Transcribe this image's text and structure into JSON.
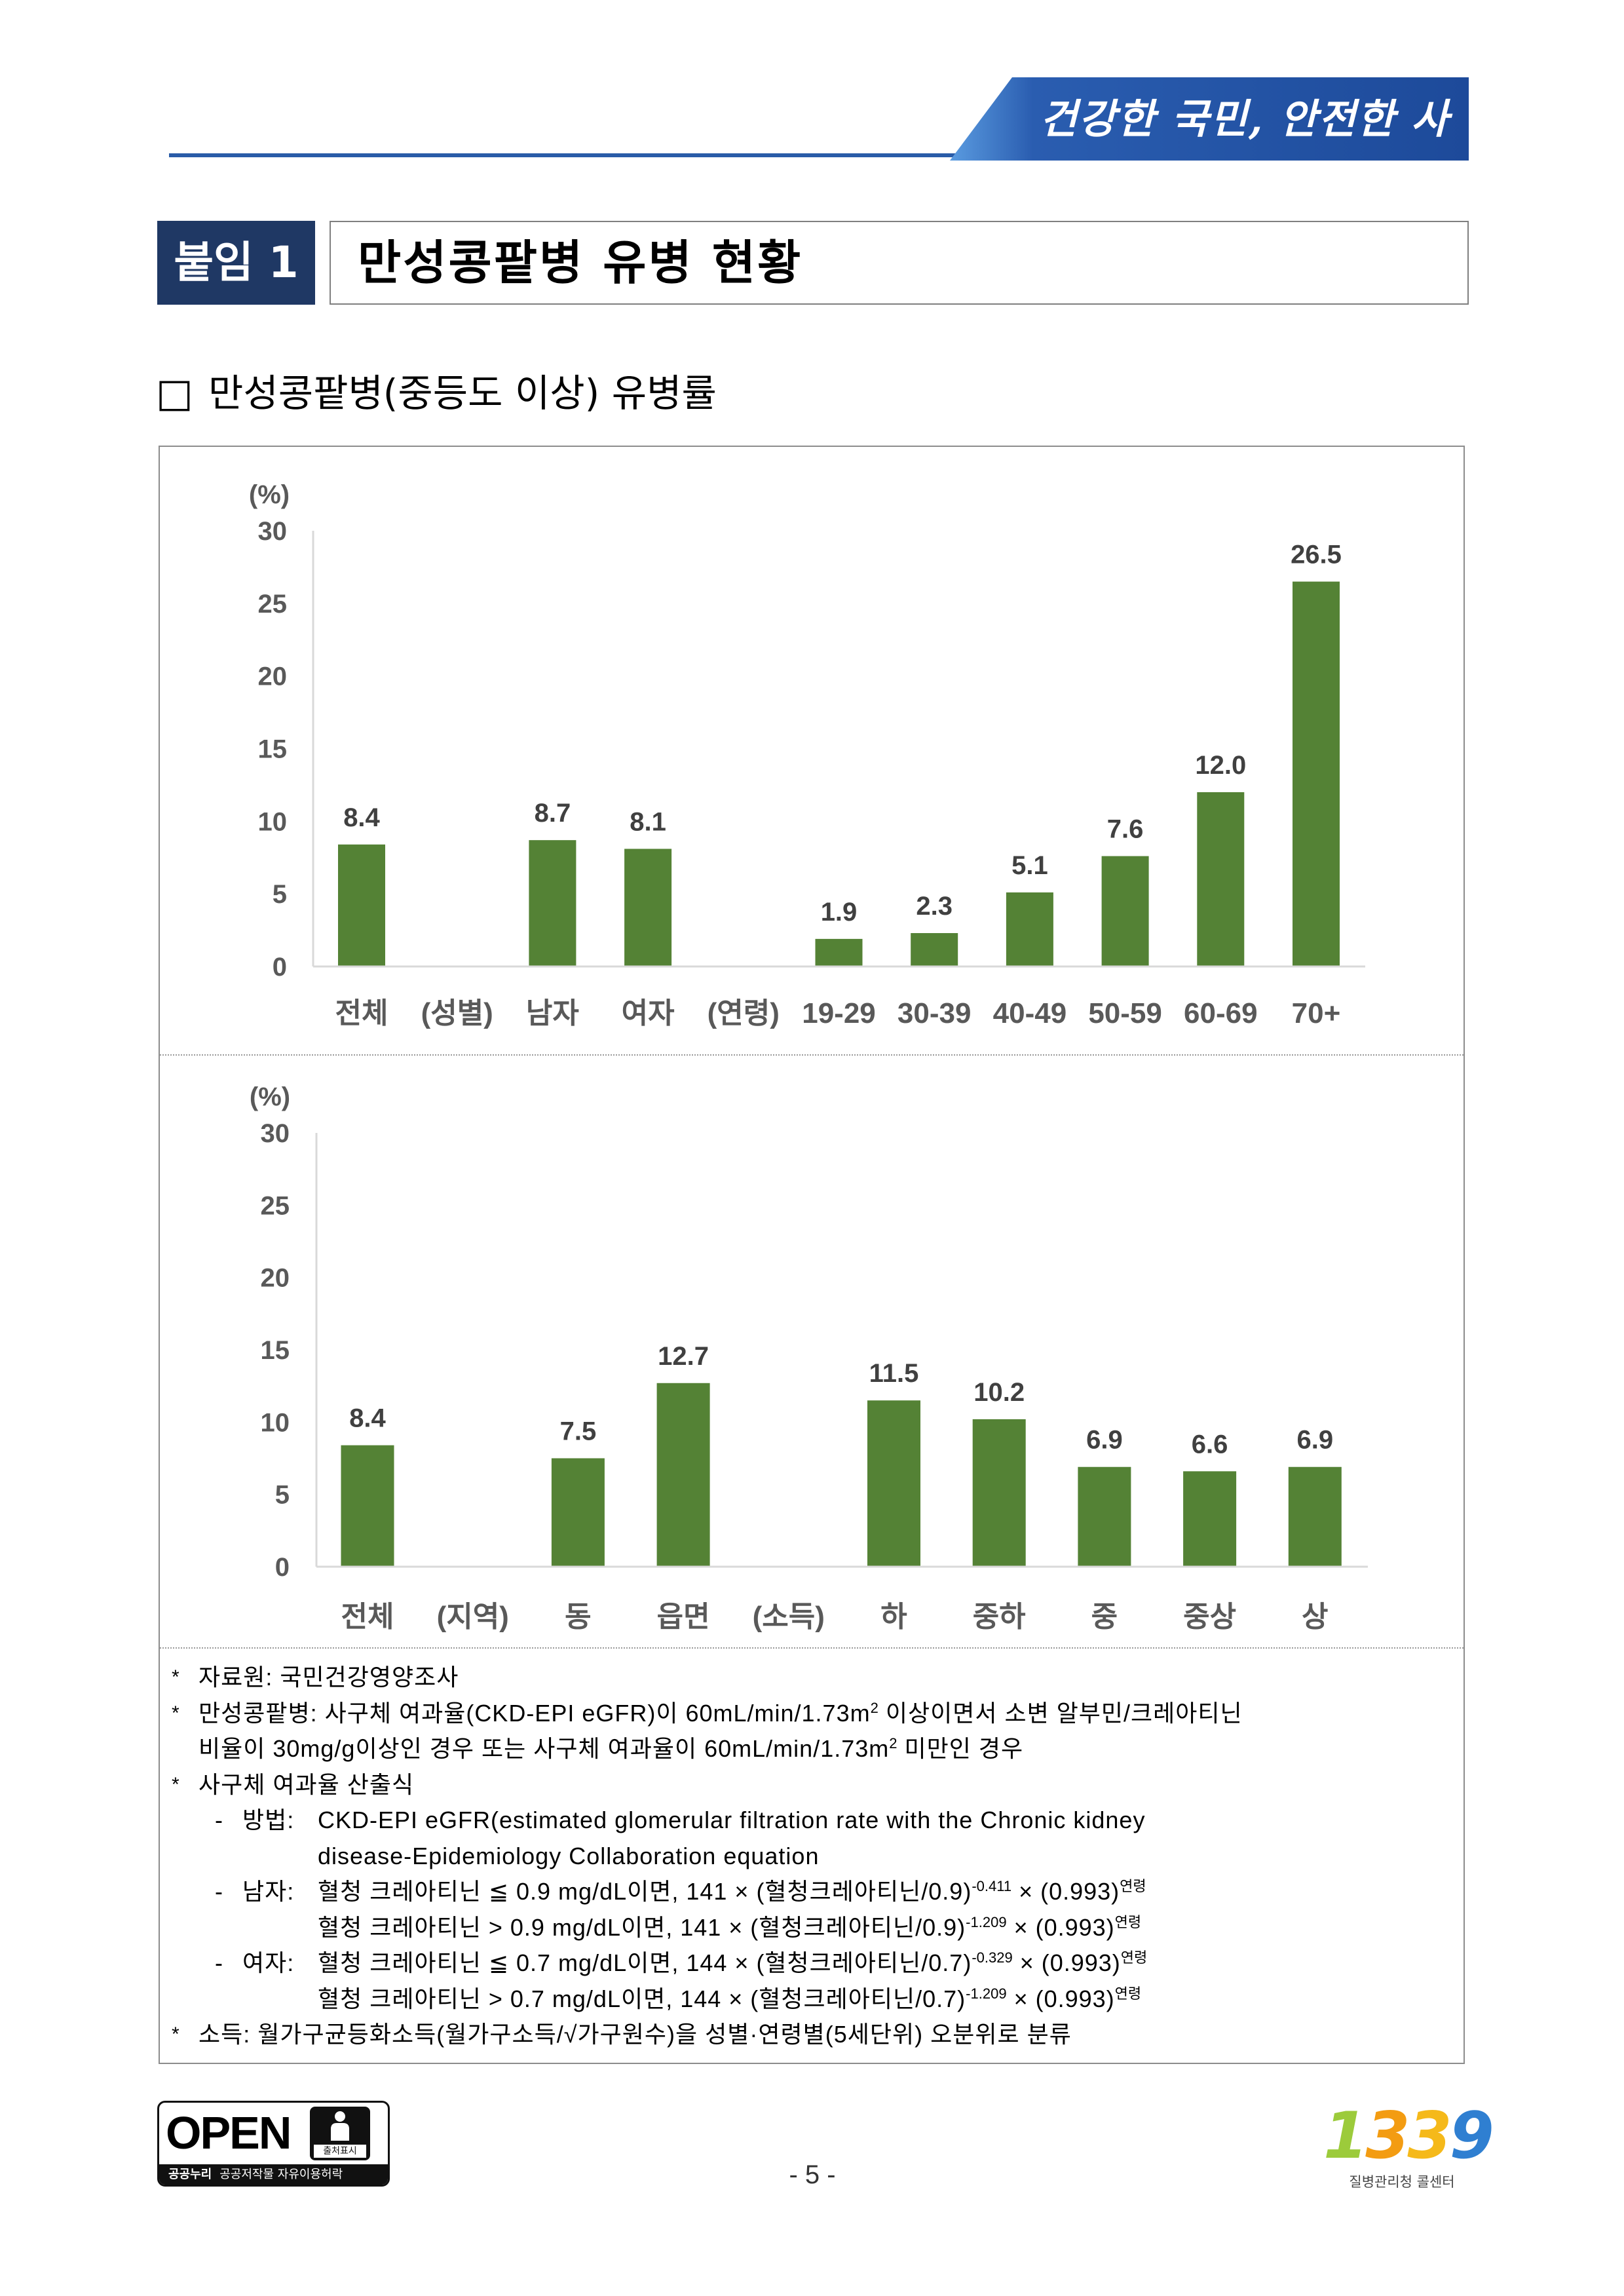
{
  "header": {
    "slogan": "건강한 국민, 안전한 사회"
  },
  "title": {
    "tag": "붙임 1",
    "text": "만성콩팥병 유병 현황"
  },
  "section": {
    "bullet": "□",
    "heading": "만성콩팥병(중등도 이상) 유병률"
  },
  "chart_data": [
    {
      "type": "bar",
      "ylabel": "(%)",
      "ylim": [
        0,
        30
      ],
      "yticks": [
        0,
        5,
        10,
        15,
        20,
        25,
        30
      ],
      "categories": [
        "전체",
        "(성별)",
        "남자",
        "여자",
        "(연령)",
        "19-29",
        "30-39",
        "40-49",
        "50-59",
        "60-69",
        "70+"
      ],
      "values": [
        8.4,
        null,
        8.7,
        8.1,
        null,
        1.9,
        2.3,
        5.1,
        7.6,
        12.0,
        26.5
      ],
      "bar_color": "#548235",
      "grid": false
    },
    {
      "type": "bar",
      "ylabel": "(%)",
      "ylim": [
        0,
        30
      ],
      "yticks": [
        0,
        5,
        10,
        15,
        20,
        25,
        30
      ],
      "categories": [
        "전체",
        "(지역)",
        "동",
        "읍면",
        "(소득)",
        "하",
        "중하",
        "중",
        "중상",
        "상"
      ],
      "values": [
        8.4,
        null,
        7.5,
        12.7,
        null,
        11.5,
        10.2,
        6.9,
        6.6,
        6.9
      ],
      "bar_color": "#548235",
      "grid": false
    }
  ],
  "notes": [
    {
      "marker": "*",
      "lines": [
        [
          {
            "text": "자료원: 국민건강영양조사"
          }
        ]
      ]
    },
    {
      "marker": "*",
      "lines": [
        [
          {
            "text": "만성콩팥병: 사구체 여과율(CKD-EPI eGFR)이 60mL/min/1.73m"
          },
          {
            "sup": "2"
          },
          {
            "text": " 이상이면서 소변 알부민/크레아티닌"
          }
        ],
        [
          {
            "text": "비율이 30mg/g이상인 경우 또는 사구체 여과율이 60mL/min/1.73m"
          },
          {
            "sup": "2"
          },
          {
            "text": " 미만인 경우"
          }
        ]
      ]
    },
    {
      "marker": "*",
      "lines": [
        [
          {
            "text": "사구체 여과율 산출식"
          }
        ]
      ],
      "sub": [
        {
          "marker": "-",
          "label": "방법:",
          "lines": [
            [
              {
                "text": "CKD-EPI eGFR(estimated glomerular filtration rate with the Chronic kidney"
              }
            ],
            [
              {
                "text": "disease-Epidemiology Collaboration equation"
              }
            ]
          ]
        },
        {
          "marker": "-",
          "label": "남자:",
          "lines": [
            [
              {
                "text": "혈청 크레아티닌 ≦ 0.9 mg/dL이면, 141 × (혈청크레아티닌/0.9)"
              },
              {
                "sup": "-0.411"
              },
              {
                "text": " × (0.993)"
              },
              {
                "sup": "연령"
              }
            ],
            [
              {
                "text": "혈청 크레아티닌 > 0.9 mg/dL이면, 141 × (혈청크레아티닌/0.9)"
              },
              {
                "sup": "-1.209"
              },
              {
                "text": " × (0.993)"
              },
              {
                "sup": "연령"
              }
            ]
          ]
        },
        {
          "marker": "-",
          "label": "여자:",
          "lines": [
            [
              {
                "text": "혈청 크레아티닌 ≦ 0.7 mg/dL이면, 144 × (혈청크레아티닌/0.7)"
              },
              {
                "sup": "-0.329"
              },
              {
                "text": " × (0.993)"
              },
              {
                "sup": "연령"
              }
            ],
            [
              {
                "text": "혈청 크레아티닌 > 0.7 mg/dL이면, 144 × (혈청크레아티닌/0.7)"
              },
              {
                "sup": "-1.209"
              },
              {
                "text": " × (0.993)"
              },
              {
                "sup": "연령"
              }
            ]
          ]
        }
      ]
    },
    {
      "marker": "*",
      "lines": [
        [
          {
            "text": "소득: 월가구균등화소득(월가구소득/√가구원수)을 성별·연령별(5세단위) 오분위로 분류"
          }
        ]
      ]
    }
  ],
  "footer": {
    "license": {
      "open": "OPEN",
      "badge": "출처표시",
      "brand": "공공누리",
      "text": "공공저작물 자유이용허락"
    },
    "page_number": "- 5 -",
    "call_center": {
      "digits": [
        "1",
        "3",
        "3",
        "9"
      ],
      "digit_colors": [
        "#9ccb3b",
        "#f39c12",
        "#f5b91a",
        "#2f7fd1"
      ],
      "label": "질병관리청 콜센터"
    }
  }
}
